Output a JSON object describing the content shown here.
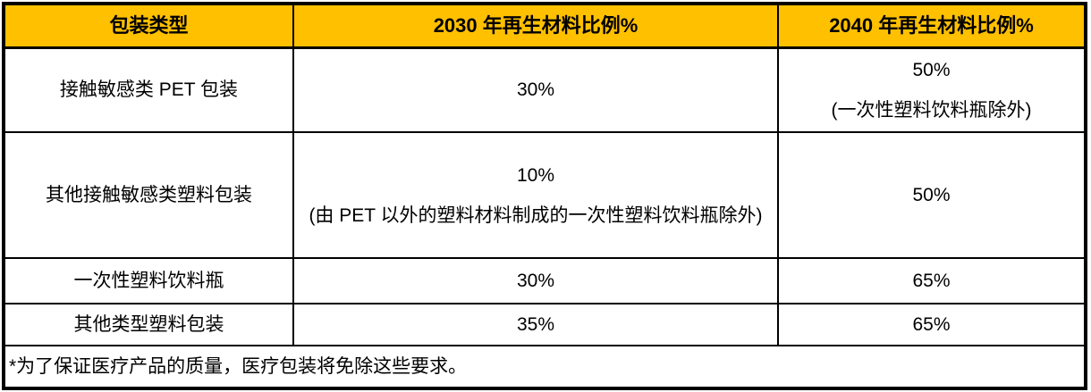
{
  "colors": {
    "header_bg": "#FFC000",
    "border": "#000000",
    "text": "#000000",
    "background": "#FFFFFF"
  },
  "table": {
    "headers": {
      "packaging_type": "包装类型",
      "ratio_2030": "2030 年再生材料比例%",
      "ratio_2040": "2040 年再生材料比例%"
    },
    "rows": [
      {
        "packaging_type": "接触敏感类 PET 包装",
        "ratio_2030": "30%",
        "ratio_2030_note": "",
        "ratio_2040": "50%",
        "ratio_2040_note": "(一次性塑料饮料瓶除外)"
      },
      {
        "packaging_type": "其他接触敏感类塑料包装",
        "ratio_2030": "10%",
        "ratio_2030_note": "(由 PET 以外的塑料材料制成的一次性塑料饮料瓶除外)",
        "ratio_2040": "50%",
        "ratio_2040_note": ""
      },
      {
        "packaging_type": "一次性塑料饮料瓶",
        "ratio_2030": "30%",
        "ratio_2030_note": "",
        "ratio_2040": "65%",
        "ratio_2040_note": ""
      },
      {
        "packaging_type": "其他类型塑料包装",
        "ratio_2030": "35%",
        "ratio_2030_note": "",
        "ratio_2040": "65%",
        "ratio_2040_note": ""
      }
    ],
    "footnote": "*为了保证医疗产品的质量，医疗包装将免除这些要求。"
  }
}
